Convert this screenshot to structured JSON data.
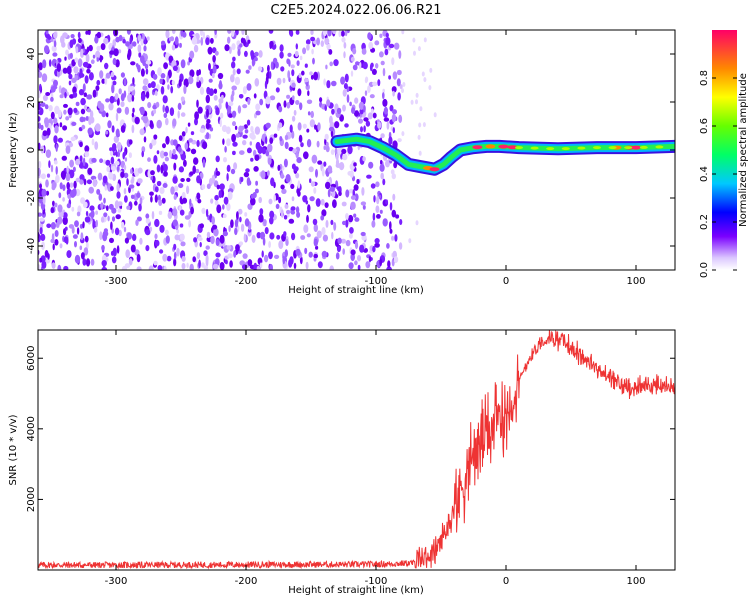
{
  "title": "C2E5.2024.022.06.06.R21",
  "chart_data": [
    {
      "type": "heatmap",
      "xlabel": "Height of straight line (km)",
      "ylabel": "Frequency (Hz)",
      "xlim": [
        -360,
        130
      ],
      "ylim": [
        -50,
        50
      ],
      "x_ticks": [
        -300,
        -200,
        -100,
        0,
        100
      ],
      "y_ticks": [
        -40,
        -20,
        0,
        20,
        40
      ],
      "noise_region_x": [
        -360,
        -80
      ],
      "signal_track": {
        "x": [
          -130,
          -115,
          -105,
          -95,
          -85,
          -75,
          -65,
          -55,
          -48,
          -42,
          -35,
          -25,
          -15,
          -5,
          10,
          40,
          70,
          100,
          130
        ],
        "y": [
          3.5,
          4.5,
          3.5,
          1,
          -2,
          -6,
          -7,
          -8,
          -6,
          -3,
          0,
          1,
          1.5,
          1.5,
          1,
          0.5,
          1,
          1,
          1.5
        ]
      },
      "colorbar": {
        "label": "Normalized spectral amplitude",
        "range": [
          0,
          1
        ],
        "ticks": [
          "0.0",
          "0.2",
          "0.4",
          "0.6",
          "0.8"
        ],
        "tick_values": [
          0,
          0.2,
          0.4,
          0.6,
          0.8
        ]
      },
      "grid": false
    },
    {
      "type": "line",
      "xlabel": "Height of straight line (km)",
      "ylabel": "SNR (10 * v/v)",
      "xlim": [
        -360,
        130
      ],
      "ylim": [
        0,
        6800
      ],
      "x_ticks": [
        -300,
        -200,
        -100,
        0,
        100
      ],
      "y_ticks": [
        2000,
        4000,
        6000
      ],
      "color": "#ee3333",
      "x": [
        -360,
        -300,
        -200,
        -100,
        -70,
        -55,
        -45,
        -35,
        -25,
        -15,
        -5,
        5,
        15,
        25,
        35,
        45,
        60,
        75,
        90,
        105,
        120,
        130
      ],
      "y": [
        140,
        140,
        150,
        160,
        200,
        500,
        1200,
        2300,
        3300,
        3900,
        4300,
        4800,
        5800,
        6400,
        6600,
        6450,
        6000,
        5550,
        5200,
        5200,
        5250,
        5100
      ],
      "grid": false
    }
  ]
}
